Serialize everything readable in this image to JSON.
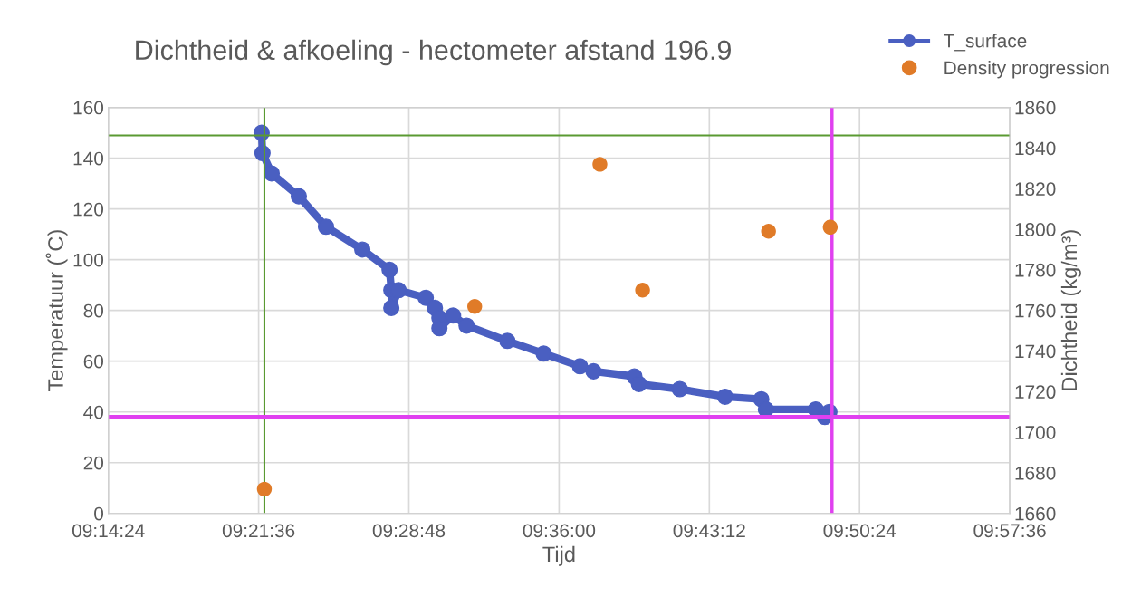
{
  "chart_data": {
    "type": "line",
    "title": "Dichtheid & afkoeling - hectometer afstand 196.9",
    "xlabel": "Tijd",
    "ylabel": "Temperatuur (˚C)",
    "y2label": "Dichtheid (kg/m³)",
    "xlim": [
      9.24,
      9.96
    ],
    "xticks": [
      {
        "value": 9.24,
        "label": "09:14:24"
      },
      {
        "value": 9.36,
        "label": "09:21:36"
      },
      {
        "value": 9.48,
        "label": "09:28:48"
      },
      {
        "value": 9.6,
        "label": "09:36:00"
      },
      {
        "value": 9.72,
        "label": "09:43:12"
      },
      {
        "value": 9.84,
        "label": "09:50:24"
      },
      {
        "value": 9.96,
        "label": "09:57:36"
      }
    ],
    "ylim": [
      0,
      160
    ],
    "yticks": [
      0,
      20,
      40,
      60,
      80,
      100,
      120,
      140,
      160
    ],
    "y2lim": [
      1660,
      1860
    ],
    "y2ticks": [
      1660,
      1680,
      1700,
      1720,
      1740,
      1760,
      1780,
      1800,
      1820,
      1840,
      1860
    ],
    "grid": true,
    "legend": "top right",
    "series": [
      {
        "name": "T_surface",
        "color": "#4a5fc1",
        "marker": "circle",
        "line_style": "solid",
        "x": [
          9.3624,
          9.3631,
          9.3704,
          9.3921,
          9.4138,
          9.4428,
          9.4646,
          9.466,
          9.466,
          9.4718,
          9.4935,
          9.5008,
          9.5044,
          9.5044,
          9.5153,
          9.5261,
          9.5587,
          9.5877,
          9.6167,
          9.6275,
          9.6601,
          9.6638,
          9.6964,
          9.7326,
          9.7615,
          9.7652,
          9.805,
          9.8123,
          9.8159
        ],
        "values": [
          150,
          142,
          134,
          125,
          113,
          104,
          96,
          88,
          81,
          88,
          85,
          81,
          77,
          73,
          78,
          74,
          68,
          63,
          58,
          56,
          54,
          51,
          49,
          46,
          45,
          41,
          41,
          38,
          40
        ]
      },
      {
        "name": "Density progression",
        "type": "scatter",
        "axis": "y2",
        "color": "#e07b28",
        "marker": "circle",
        "x": [
          9.3646,
          9.5326,
          9.6326,
          9.6667,
          9.7673,
          9.8166
        ],
        "values": [
          1672,
          1762,
          1832,
          1770,
          1799,
          1801
        ]
      }
    ],
    "ref_lines": [
      {
        "axis": "y",
        "value": 149,
        "color": "#5a9a32"
      },
      {
        "axis": "x",
        "value": 9.3646,
        "color": "#5a9a32"
      },
      {
        "axis": "y",
        "value": 38,
        "color": "#e040f0"
      },
      {
        "axis": "x",
        "value": 9.818,
        "color": "#e040f0"
      }
    ]
  }
}
